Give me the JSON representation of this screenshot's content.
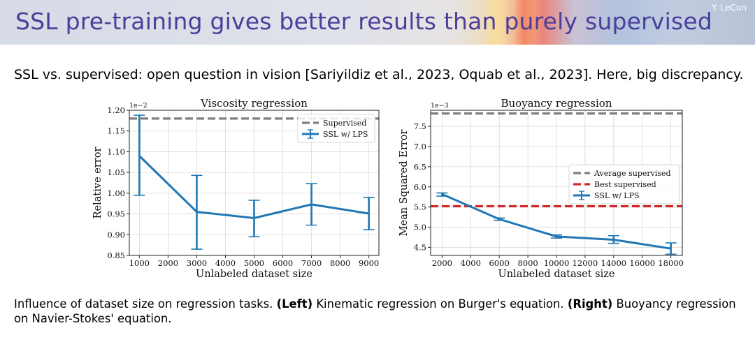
{
  "header": {
    "title": "SSL pre-training gives better results than purely supervised",
    "author": "Y. LeCun"
  },
  "subtitle": "SSL vs. supervised: open question in vision [Sariyildiz et al., 2023, Oquab et al., 2023]. Here, big discrepancy.",
  "caption": {
    "left_bold": "(Left)",
    "left_text": "Kinematic regression on Burger's equation.",
    "right_bold": "(Right)",
    "right_text": "Buoyancy regression on Navier-Stokes' equation.",
    "intro": "Influence of dataset size on regression tasks."
  },
  "colors": {
    "title": "#4b3f9c",
    "ssl": "#1f77b4",
    "avg_supervised": "#7f7f7f",
    "best_supervised": "#d62728"
  },
  "chart_data": [
    {
      "type": "line",
      "title": "Viscosity regression",
      "xlabel": "Unlabeled dataset size",
      "ylabel": "Relative error",
      "y_scale_note": "1e−2",
      "xlim": [
        650,
        9350
      ],
      "ylim": [
        0.85,
        1.2
      ],
      "x_ticks": [
        1000,
        2000,
        3000,
        4000,
        5000,
        6000,
        7000,
        8000,
        9000
      ],
      "y_ticks": [
        0.85,
        0.9,
        0.95,
        1.0,
        1.05,
        1.1,
        1.15,
        1.2
      ],
      "y_tick_labels": [
        "0.85",
        "0.90",
        "0.95",
        "1.00",
        "1.05",
        "1.10",
        "1.15",
        "1.20"
      ],
      "grid": true,
      "legend_position": "top-right",
      "reference_lines": [
        {
          "name": "Supervised",
          "y": 1.18,
          "color": "#7f7f7f",
          "style": "dashed"
        }
      ],
      "series": [
        {
          "name": "SSL w/ LPS",
          "color": "#1f77b4",
          "x": [
            1000,
            3000,
            5000,
            7000,
            9000
          ],
          "y": [
            1.09,
            0.955,
            0.94,
            0.973,
            0.951
          ],
          "err_low": [
            0.995,
            0.865,
            0.895,
            0.923,
            0.912
          ],
          "err_high": [
            1.188,
            1.043,
            0.983,
            1.023,
            0.99
          ]
        }
      ]
    },
    {
      "type": "line",
      "title": "Buoyancy regression",
      "xlabel": "Unlabeled dataset size",
      "ylabel": "Mean Squared Error",
      "y_scale_note": "1e−3",
      "xlim": [
        1200,
        18800
      ],
      "ylim": [
        4.3,
        7.9
      ],
      "x_ticks": [
        2000,
        4000,
        6000,
        8000,
        10000,
        12000,
        14000,
        16000,
        18000
      ],
      "y_ticks": [
        4.5,
        5.0,
        5.5,
        6.0,
        6.5,
        7.0,
        7.5
      ],
      "y_tick_labels": [
        "4.5",
        "5.0",
        "5.5",
        "6.0",
        "6.5",
        "7.0",
        "7.5"
      ],
      "grid": true,
      "legend_position": "center-right",
      "reference_lines": [
        {
          "name": "Average supervised",
          "y": 7.82,
          "color": "#7f7f7f",
          "style": "dashed"
        },
        {
          "name": "Best supervised",
          "y": 5.52,
          "color": "#d62728",
          "style": "dashed"
        }
      ],
      "series": [
        {
          "name": "SSL w/ LPS",
          "color": "#1f77b4",
          "x": [
            2000,
            6000,
            10000,
            14000,
            18000
          ],
          "y": [
            5.82,
            5.2,
            4.77,
            4.69,
            4.47
          ],
          "err_low": [
            5.77,
            5.17,
            4.73,
            4.6,
            4.33
          ],
          "err_high": [
            5.85,
            5.23,
            4.81,
            4.79,
            4.61
          ]
        }
      ]
    }
  ]
}
